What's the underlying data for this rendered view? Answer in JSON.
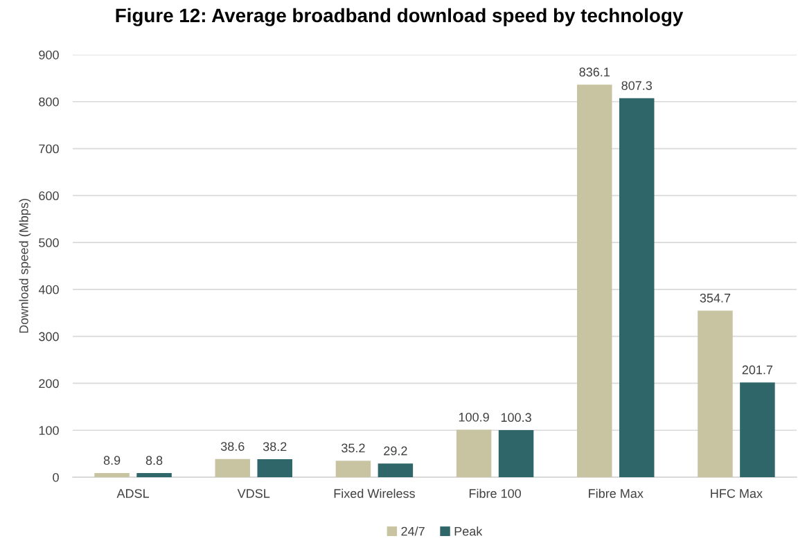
{
  "chart_data": {
    "type": "bar",
    "title": "Figure 12: Average broadband download speed by technology",
    "ylabel": "Download speed (Mbps)",
    "categories": [
      "ADSL",
      "VDSL",
      "Fixed Wireless",
      "Fibre 100",
      "Fibre Max",
      "HFC Max"
    ],
    "series": [
      {
        "name": "24/7",
        "color": "#c8c4a2",
        "values": [
          8.9,
          38.6,
          35.2,
          100.9,
          836.1,
          354.7
        ]
      },
      {
        "name": "Peak",
        "color": "#2e6669",
        "values": [
          8.8,
          38.2,
          29.2,
          100.3,
          807.3,
          201.7
        ]
      }
    ],
    "ylim": [
      0,
      900
    ],
    "yticks": [
      0,
      100,
      200,
      300,
      400,
      500,
      600,
      700,
      800,
      900
    ],
    "grid": "y",
    "legend": "bottom",
    "data_labels": true
  }
}
